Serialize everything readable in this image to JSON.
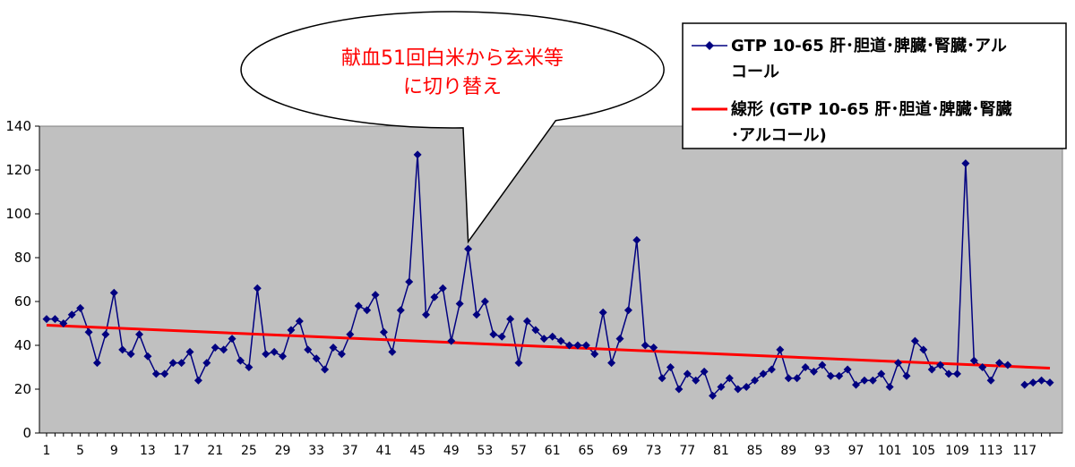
{
  "chart_data": {
    "type": "line",
    "xlabel": "",
    "ylabel": "",
    "ylim": [
      0,
      140
    ],
    "yticks": [
      0,
      20,
      40,
      60,
      80,
      100,
      120,
      140
    ],
    "x_tick_labels": [
      "1",
      "5",
      "9",
      "13",
      "17",
      "21",
      "25",
      "29",
      "33",
      "37",
      "41",
      "45",
      "49",
      "53",
      "57",
      "61",
      "65",
      "69",
      "73",
      "77",
      "81",
      "85",
      "89",
      "93",
      "97",
      "101",
      "105",
      "109",
      "113",
      "117"
    ],
    "x": [
      1,
      2,
      3,
      4,
      5,
      6,
      7,
      8,
      9,
      10,
      11,
      12,
      13,
      14,
      15,
      16,
      17,
      18,
      19,
      20,
      21,
      22,
      23,
      24,
      25,
      26,
      27,
      28,
      29,
      30,
      31,
      32,
      33,
      34,
      35,
      36,
      37,
      38,
      39,
      40,
      41,
      42,
      43,
      44,
      45,
      46,
      47,
      48,
      49,
      50,
      51,
      52,
      53,
      54,
      55,
      56,
      57,
      58,
      59,
      60,
      61,
      62,
      63,
      64,
      65,
      66,
      67,
      68,
      69,
      70,
      71,
      72,
      73,
      74,
      75,
      76,
      77,
      78,
      79,
      80,
      81,
      82,
      83,
      84,
      85,
      86,
      87,
      88,
      89,
      90,
      91,
      92,
      93,
      94,
      95,
      96,
      97,
      98,
      99,
      100,
      101,
      102,
      103,
      104,
      105,
      106,
      107,
      108,
      109,
      110,
      111,
      112,
      113,
      114,
      115,
      116,
      117,
      118,
      119,
      120
    ],
    "grid": false,
    "legend_position": "top-right",
    "plot_background": "#c0c0c0",
    "series": [
      {
        "name": "GTP 10-65 肝･胆道･脾臓･腎臓･アルコール",
        "color": "#000080",
        "marker": "diamond",
        "values": [
          52,
          52,
          50,
          54,
          57,
          46,
          32,
          45,
          64,
          38,
          36,
          45,
          35,
          27,
          27,
          32,
          32,
          37,
          24,
          32,
          39,
          38,
          43,
          33,
          30,
          66,
          36,
          37,
          35,
          47,
          51,
          38,
          34,
          29,
          39,
          36,
          45,
          58,
          56,
          63,
          46,
          37,
          56,
          69,
          127,
          54,
          62,
          66,
          42,
          59,
          84,
          54,
          60,
          45,
          44,
          52,
          32,
          51,
          47,
          43,
          44,
          42,
          40,
          40,
          40,
          36,
          55,
          32,
          43,
          56,
          88,
          40,
          39,
          25,
          30,
          20,
          27,
          24,
          28,
          17,
          21,
          25,
          20,
          21,
          24,
          27,
          29,
          38,
          25,
          25,
          30,
          28,
          31,
          26,
          26,
          29,
          22,
          24,
          24,
          27,
          21,
          32,
          26,
          42,
          38,
          29,
          31,
          27,
          27,
          123,
          33,
          30,
          24,
          32,
          31,
          null,
          22,
          23,
          24,
          23
        ]
      },
      {
        "name": "線形 (GTP 10-65 肝･胆道･脾臓･腎臓･アルコール)",
        "color": "#ff0000",
        "type": "linear-trend",
        "values": [
          49.2,
          29.6
        ],
        "x": [
          1,
          120
        ]
      }
    ],
    "annotations": [
      {
        "text_lines": [
          "献血51回白米から玄米等",
          "に切り替え"
        ],
        "color": "#ff0000",
        "points_to_x": 51
      }
    ]
  }
}
